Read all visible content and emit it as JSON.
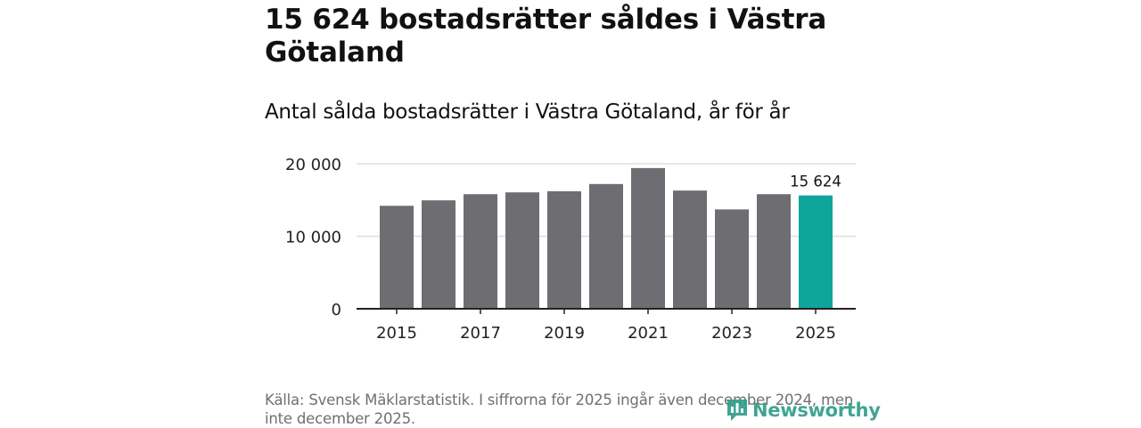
{
  "chart_data": {
    "type": "bar",
    "title": "15 624 bostadsrätter såldes i Västra Götaland",
    "subtitle": "Antal sålda bostadsrätter i Västra Götaland, år för år",
    "categories": [
      2015,
      2016,
      2017,
      2018,
      2019,
      2020,
      2021,
      2022,
      2023,
      2024,
      2025
    ],
    "values": [
      14200,
      14950,
      15800,
      16050,
      16200,
      17200,
      19400,
      16300,
      13700,
      15800,
      15624
    ],
    "x_tick_labels": [
      "2015",
      "2017",
      "2019",
      "2021",
      "2023",
      "2025"
    ],
    "y_ticks": [
      0,
      10000,
      20000
    ],
    "y_tick_labels": [
      "0",
      "10 000",
      "20 000"
    ],
    "ylim": [
      0,
      20000
    ],
    "xlabel": "",
    "ylabel": "",
    "grid": true,
    "highlight_index": 10,
    "highlight_label": "15 624",
    "colors": {
      "bar": "#6d6d72",
      "highlight": "#0fa59b",
      "grid": "#dddddd",
      "axis": "#222222",
      "tick_text": "#222222"
    }
  },
  "source": "Källa: Svensk Mäklarstatistik. I siffrorna för 2025 ingår även december 2024, men inte december 2025.",
  "logo": {
    "text": "Newsworthy",
    "icon": "newsworthy-chart-bubble-icon",
    "color": "#2f9e8a"
  }
}
